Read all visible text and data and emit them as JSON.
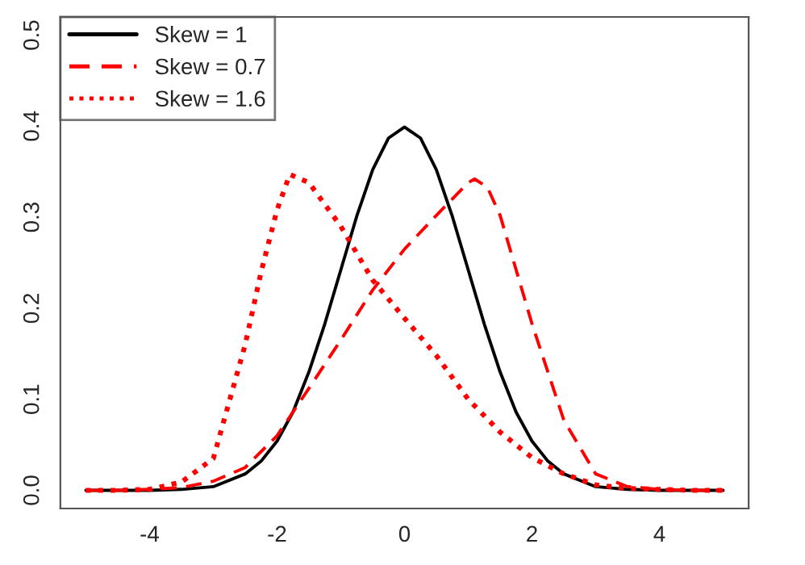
{
  "chart_data": {
    "type": "line",
    "series": [
      {
        "name": "Skew = 1",
        "color": "#000000",
        "line_style": "solid",
        "x": [
          -5,
          -4.5,
          -4,
          -3.5,
          -3,
          -2.5,
          -2.25,
          -2,
          -1.75,
          -1.5,
          -1.25,
          -1,
          -0.75,
          -0.5,
          -0.25,
          0,
          0.25,
          0.5,
          0.75,
          1,
          1.25,
          1.5,
          1.75,
          2,
          2.25,
          2.5,
          3,
          3.5,
          4,
          4.5,
          5
        ],
        "values": [
          0,
          0,
          0,
          0.001,
          0.004,
          0.018,
          0.032,
          0.054,
          0.086,
          0.13,
          0.183,
          0.242,
          0.301,
          0.352,
          0.387,
          0.399,
          0.387,
          0.352,
          0.301,
          0.242,
          0.183,
          0.13,
          0.086,
          0.054,
          0.032,
          0.018,
          0.004,
          0.001,
          0,
          0,
          0
        ]
      },
      {
        "name": "Skew = 0.7",
        "color": "#ff0000",
        "line_style": "dashed",
        "x": [
          -5,
          -4.5,
          -4,
          -3.5,
          -3,
          -2.5,
          -2,
          -1.5,
          -1,
          -0.5,
          0,
          0.5,
          1,
          1.1,
          1.3,
          1.5,
          2,
          2.5,
          3,
          3.5,
          4,
          4.5,
          5
        ],
        "values": [
          0,
          0,
          0.001,
          0.003,
          0.01,
          0.025,
          0.06,
          0.112,
          0.165,
          0.22,
          0.265,
          0.302,
          0.338,
          0.342,
          0.333,
          0.302,
          0.183,
          0.077,
          0.018,
          0.004,
          0.001,
          0,
          0
        ]
      },
      {
        "name": "Skew = 1.6",
        "color": "#ff0000",
        "line_style": "dotted",
        "x": [
          -5,
          -4.5,
          -4,
          -3.5,
          -3,
          -2.5,
          -2.25,
          -2,
          -1.8,
          -1.5,
          -1,
          -0.5,
          0,
          0.5,
          1,
          1.5,
          2,
          2.5,
          3,
          3.5,
          4,
          4.5,
          5
        ],
        "values": [
          0,
          0,
          0.001,
          0.009,
          0.035,
          0.16,
          0.24,
          0.308,
          0.347,
          0.338,
          0.29,
          0.231,
          0.189,
          0.148,
          0.1,
          0.064,
          0.036,
          0.018,
          0.006,
          0.002,
          0.001,
          0,
          0
        ]
      }
    ],
    "xlim": [
      -5.4,
      5.4
    ],
    "xticks": [
      -4,
      -2,
      0,
      2,
      4
    ],
    "ylim": [
      -0.02,
      0.52
    ],
    "yticks": [
      {
        "value": 0,
        "label": "0.0"
      },
      0.1,
      0.2,
      0.3,
      0.4,
      0.5
    ],
    "grid": false,
    "legend": "top left"
  }
}
